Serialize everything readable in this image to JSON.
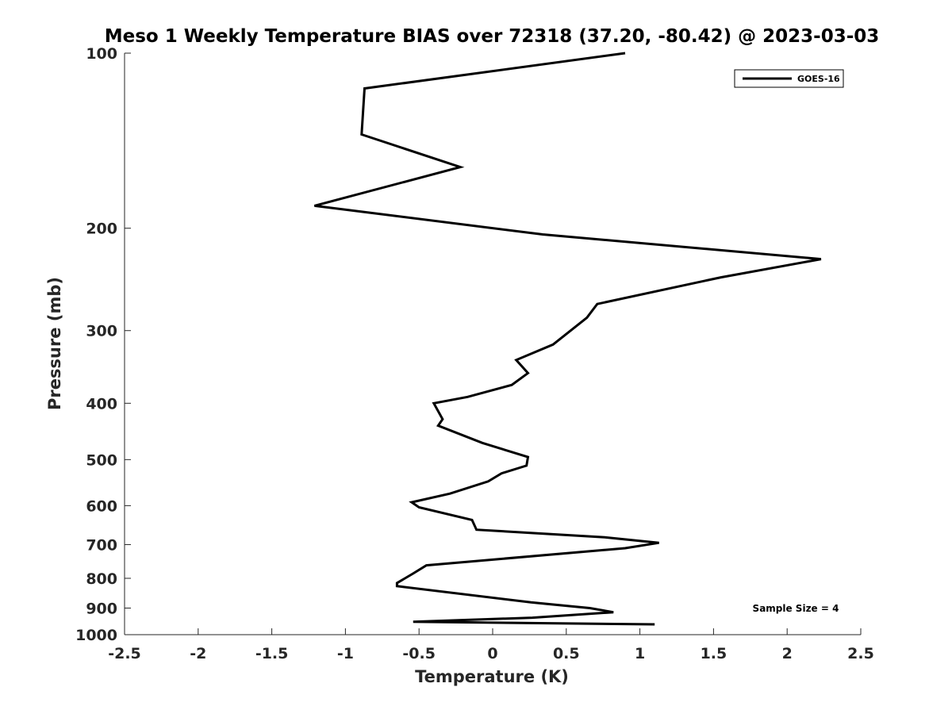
{
  "chart_data": {
    "type": "line",
    "title": "Meso 1 Weekly Temperature BIAS over 72318 (37.20, -80.42) @ 2023-03-03",
    "xlabel": "Temperature (K)",
    "ylabel": "Pressure (mb)",
    "xlim": [
      -2.5,
      2.5
    ],
    "ylim": [
      1000,
      100
    ],
    "yscale": "log",
    "y_reversed": true,
    "grid": false,
    "legend_position": "top-right",
    "x_ticks": [
      "-2.5",
      "-2",
      "-1.5",
      "-1",
      "-0.5",
      "0",
      "0.5",
      "1",
      "1.5",
      "2",
      "2.5"
    ],
    "x_tick_values": [
      -2.5,
      -2,
      -1.5,
      -1,
      -0.5,
      0,
      0.5,
      1,
      1.5,
      2,
      2.5
    ],
    "y_ticks": [
      "100",
      "200",
      "300",
      "400",
      "500",
      "600",
      "700",
      "800",
      "900",
      "1000"
    ],
    "y_tick_values": [
      100,
      200,
      300,
      400,
      500,
      600,
      700,
      800,
      900,
      1000
    ],
    "annotation": "Sample Size = 4",
    "series": [
      {
        "name": "GOES-16",
        "color": "#000000",
        "x": [
          0.9,
          -0.87,
          -0.89,
          -0.22,
          -1.21,
          0.34,
          2.23,
          1.55,
          0.71,
          0.64,
          0.41,
          0.16,
          0.24,
          0.13,
          -0.17,
          -0.4,
          -0.34,
          -0.37,
          -0.07,
          0.24,
          0.23,
          0.06,
          -0.03,
          -0.29,
          -0.55,
          -0.5,
          -0.14,
          -0.11,
          0.76,
          1.13,
          0.9,
          -0.45,
          -0.54,
          -0.65,
          -0.65,
          0.26,
          0.66,
          0.82,
          0.27,
          -0.54,
          1.1
        ],
        "y": [
          100,
          115,
          138,
          157,
          183,
          205,
          226,
          243,
          270,
          285,
          317,
          337,
          355,
          372,
          390,
          400,
          426,
          437,
          468,
          495,
          512,
          528,
          545,
          572,
          592,
          604,
          635,
          660,
          680,
          695,
          710,
          760,
          785,
          815,
          825,
          880,
          900,
          915,
          935,
          950,
          960
        ]
      }
    ]
  }
}
